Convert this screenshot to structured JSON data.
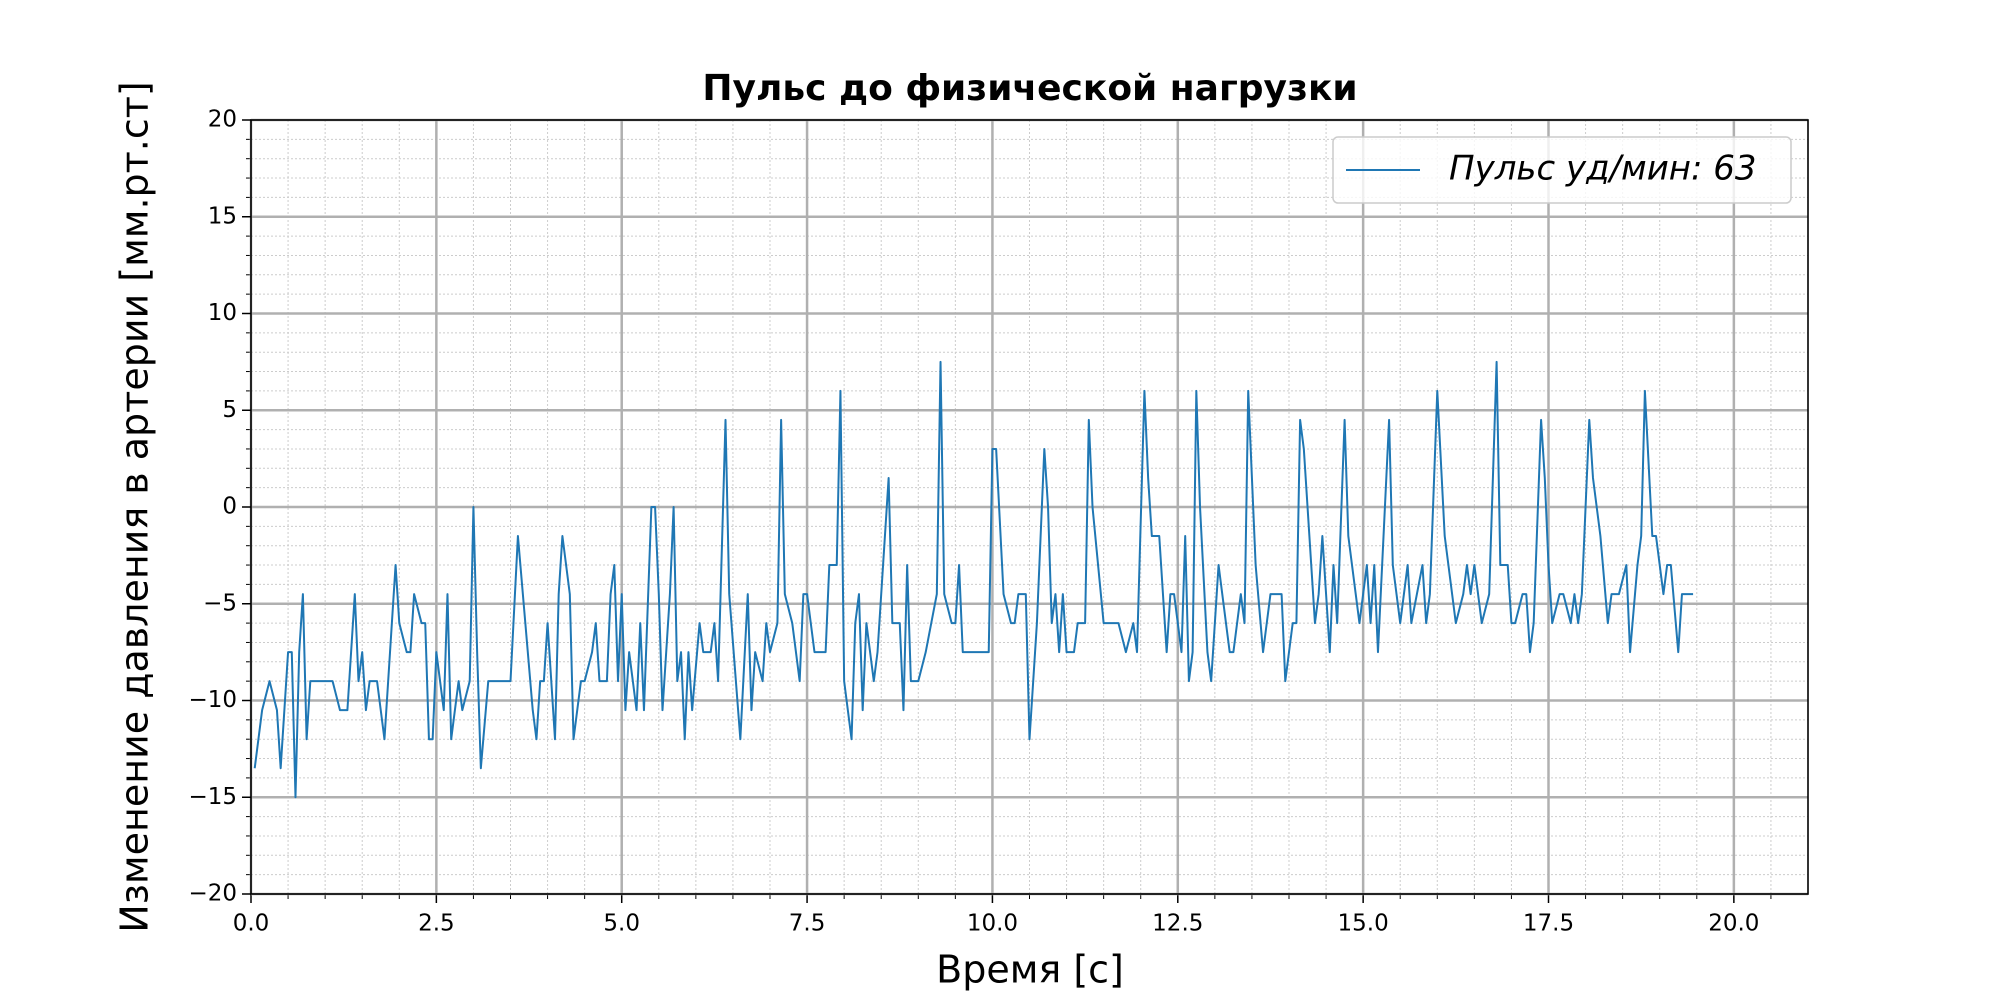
{
  "chart_data": {
    "type": "line",
    "title": "Пульс до физической нагрузки",
    "xlabel": "Время [с]",
    "ylabel": "Изменение давления в артерии [мм.рт.ст]",
    "x": [
      0.05,
      0.15,
      0.25,
      0.35,
      0.4,
      0.5,
      0.55,
      0.6,
      0.65,
      0.7,
      0.75,
      0.8,
      0.9,
      1.0,
      1.1,
      1.2,
      1.3,
      1.4,
      1.45,
      1.5,
      1.55,
      1.6,
      1.7,
      1.8,
      1.9,
      1.95,
      2.0,
      2.1,
      2.15,
      2.2,
      2.3,
      2.35,
      2.4,
      2.45,
      2.5,
      2.6,
      2.65,
      2.7,
      2.8,
      2.85,
      2.95,
      3.0,
      3.05,
      3.1,
      3.2,
      3.3,
      3.5,
      3.6,
      3.7,
      3.8,
      3.85,
      3.9,
      3.95,
      4.0,
      4.1,
      4.15,
      4.2,
      4.3,
      4.35,
      4.45,
      4.5,
      4.6,
      4.65,
      4.7,
      4.8,
      4.85,
      4.9,
      4.95,
      5.0,
      5.05,
      5.1,
      5.2,
      5.25,
      5.3,
      5.4,
      5.45,
      5.5,
      5.55,
      5.65,
      5.7,
      5.75,
      5.8,
      5.85,
      5.9,
      5.95,
      6.05,
      6.1,
      6.2,
      6.25,
      6.3,
      6.4,
      6.45,
      6.6,
      6.7,
      6.75,
      6.8,
      6.9,
      6.95,
      7.0,
      7.1,
      7.15,
      7.2,
      7.3,
      7.4,
      7.45,
      7.5,
      7.6,
      7.75,
      7.8,
      7.9,
      7.95,
      8.0,
      8.1,
      8.15,
      8.2,
      8.25,
      8.3,
      8.4,
      8.45,
      8.6,
      8.65,
      8.75,
      8.8,
      8.85,
      8.9,
      9.0,
      9.1,
      9.25,
      9.3,
      9.35,
      9.45,
      9.5,
      9.55,
      9.6,
      9.7,
      9.95,
      10.0,
      10.05,
      10.15,
      10.25,
      10.3,
      10.35,
      10.45,
      10.5,
      10.6,
      10.7,
      10.75,
      10.8,
      10.85,
      10.9,
      10.95,
      11.0,
      11.1,
      11.15,
      11.25,
      11.3,
      11.35,
      11.5,
      11.6,
      11.7,
      11.8,
      11.9,
      11.95,
      12.05,
      12.1,
      12.15,
      12.25,
      12.35,
      12.4,
      12.45,
      12.55,
      12.6,
      12.65,
      12.7,
      12.75,
      12.8,
      12.9,
      12.95,
      13.05,
      13.1,
      13.2,
      13.25,
      13.35,
      13.4,
      13.45,
      13.55,
      13.65,
      13.75,
      13.85,
      13.9,
      13.95,
      14.05,
      14.1,
      14.15,
      14.2,
      14.3,
      14.35,
      14.4,
      14.45,
      14.5,
      14.55,
      14.6,
      14.65,
      14.75,
      14.8,
      14.9,
      14.95,
      15.05,
      15.1,
      15.15,
      15.2,
      15.35,
      15.4,
      15.5,
      15.6,
      15.65,
      15.8,
      15.85,
      15.9,
      16.0,
      16.1,
      16.25,
      16.35,
      16.4,
      16.45,
      16.5,
      16.6,
      16.7,
      16.8,
      16.85,
      16.95,
      17.0,
      17.05,
      17.15,
      17.2,
      17.25,
      17.3,
      17.4,
      17.45,
      17.5,
      17.55,
      17.65,
      17.7,
      17.8,
      17.85,
      17.9,
      17.95,
      18.05,
      18.1,
      18.2,
      18.3,
      18.35,
      18.45,
      18.55,
      18.6,
      18.7,
      18.75,
      18.8,
      18.9,
      18.95,
      19.05,
      19.1,
      19.15,
      19.25,
      19.3,
      19.35,
      19.45
    ],
    "series": [
      {
        "name": "Пульс уд/мин: 63",
        "color": "#1f77b4",
        "values": [
          -13.5,
          -10.5,
          -9,
          -10.5,
          -13.5,
          -7.5,
          -7.5,
          -15,
          -7.5,
          -4.5,
          -12,
          -9,
          -9,
          -9,
          -9,
          -10.5,
          -10.5,
          -4.5,
          -9,
          -7.5,
          -10.5,
          -9,
          -9,
          -12,
          -6,
          -3,
          -6,
          -7.5,
          -7.5,
          -4.5,
          -6,
          -6,
          -12,
          -12,
          -7.5,
          -10.5,
          -4.5,
          -12,
          -9,
          -10.5,
          -9,
          0,
          -7.5,
          -13.5,
          -9,
          -9,
          -9,
          -1.5,
          -6,
          -10.5,
          -12,
          -9,
          -9,
          -6,
          -12,
          -4.5,
          -1.5,
          -4.5,
          -12,
          -9,
          -9,
          -7.5,
          -6,
          -9,
          -9,
          -4.5,
          -3,
          -9,
          -4.5,
          -10.5,
          -7.5,
          -10.5,
          -6,
          -10.5,
          0,
          0,
          -4.5,
          -10.5,
          -4.5,
          0,
          -9,
          -7.5,
          -12,
          -7.5,
          -10.5,
          -6,
          -7.5,
          -7.5,
          -6,
          -9,
          4.5,
          -4.5,
          -12,
          -4.5,
          -10.5,
          -7.5,
          -9,
          -6,
          -7.5,
          -6,
          4.5,
          -4.5,
          -6,
          -9,
          -4.5,
          -4.5,
          -7.5,
          -7.5,
          -3,
          -3,
          6,
          -9,
          -12,
          -6,
          -4.5,
          -10.5,
          -6,
          -9,
          -7.5,
          1.5,
          -6,
          -6,
          -10.5,
          -3,
          -9,
          -9,
          -7.5,
          -4.5,
          7.5,
          -4.5,
          -6,
          -6,
          -3,
          -7.5,
          -7.5,
          -7.5,
          3,
          3,
          -4.5,
          -6,
          -6,
          -4.5,
          -4.5,
          -12,
          -6,
          3,
          0,
          -6,
          -4.5,
          -7.5,
          -4.5,
          -7.5,
          -7.5,
          -6,
          -6,
          4.5,
          0,
          -6,
          -6,
          -6,
          -7.5,
          -6,
          -7.5,
          6,
          1.5,
          -1.5,
          -1.5,
          -7.5,
          -4.5,
          -4.5,
          -7.5,
          -1.5,
          -9,
          -7.5,
          6,
          0,
          -7.5,
          -9,
          -3,
          -4.5,
          -7.5,
          -7.5,
          -4.5,
          -6,
          6,
          -3,
          -7.5,
          -4.5,
          -4.5,
          -4.5,
          -9,
          -6,
          -6,
          4.5,
          3,
          -3,
          -6,
          -4.5,
          -1.5,
          -4.5,
          -7.5,
          -3,
          -6,
          4.5,
          -1.5,
          -4.5,
          -6,
          -3,
          -6,
          -3,
          -7.5,
          4.5,
          -3,
          -6,
          -3,
          -6,
          -3,
          -6,
          -4.5,
          6,
          -1.5,
          -6,
          -4.5,
          -3,
          -4.5,
          -3,
          -6,
          -4.5,
          7.5,
          -3,
          -3,
          -6,
          -6,
          -4.5,
          -4.5,
          -7.5,
          -6,
          4.5,
          1.5,
          -3,
          -6,
          -4.5,
          -4.5,
          -6,
          -4.5,
          -6,
          -4.5,
          4.5,
          1.5,
          -1.5,
          -6,
          -4.5,
          -4.5,
          -3,
          -7.5,
          -3,
          -1.5,
          6,
          -1.5,
          -1.5,
          -4.5,
          -3,
          -3,
          -7.5,
          -4.5,
          -4.5,
          -4.5
        ]
      }
    ],
    "xlim": [
      0,
      21
    ],
    "ylim": [
      -20,
      20
    ],
    "xticks": [
      {
        "value": 0,
        "label": "0.0"
      },
      {
        "value": 2.5,
        "label": "2.5"
      },
      {
        "value": 5,
        "label": "5.0"
      },
      {
        "value": 7.5,
        "label": "7.5"
      },
      {
        "value": 10,
        "label": "10.0"
      },
      {
        "value": 12.5,
        "label": "12.5"
      },
      {
        "value": 15,
        "label": "15.0"
      },
      {
        "value": 17.5,
        "label": "17.5"
      },
      {
        "value": 20,
        "label": "20.0"
      }
    ],
    "yticks": [
      {
        "value": -20,
        "label": "−20"
      },
      {
        "value": -15,
        "label": "−15"
      },
      {
        "value": -10,
        "label": "−10"
      },
      {
        "value": -5,
        "label": "−5"
      },
      0,
      5,
      10,
      15,
      20
    ],
    "grid": true,
    "minor_grid": true,
    "legend": "upper right"
  }
}
